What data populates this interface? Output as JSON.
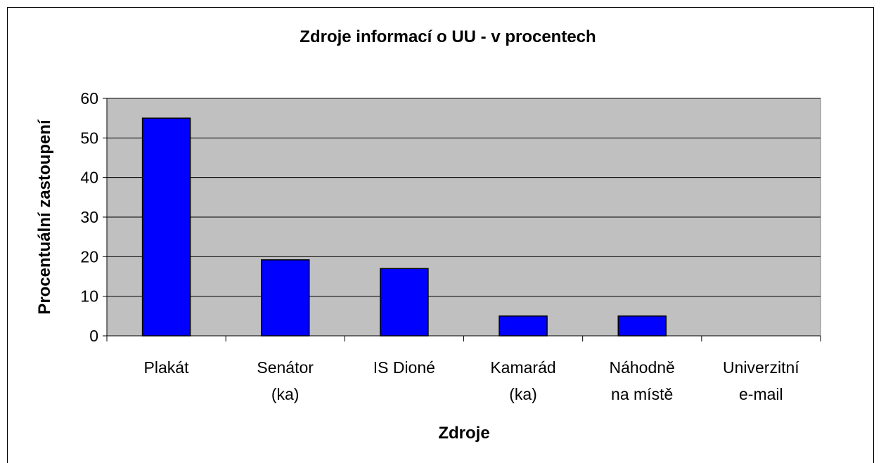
{
  "chart_data": {
    "type": "bar",
    "title": "Zdroje informací o UU - v procentech",
    "x_label": "Zdroje",
    "y_label": "Procentuální zastoupení",
    "categories": [
      "Plakát",
      "Senátor\n(ka)",
      "IS Dioné",
      "Kamarád\n(ka)",
      "Náhodně\nna místě",
      "Univerzitní\ne-mail"
    ],
    "values": [
      55,
      19.2,
      17,
      5,
      5,
      0
    ],
    "color": "#0000ff",
    "ylim": [
      0,
      60
    ],
    "yticks": [
      0,
      10,
      20,
      30,
      40,
      50,
      60
    ],
    "grid": true
  }
}
